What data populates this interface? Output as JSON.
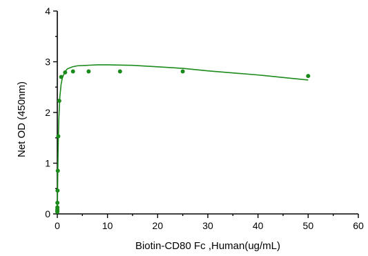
{
  "chart_data": {
    "type": "scatter",
    "title": "",
    "xlabel": "Biotin-CD80 Fc ,Human(ug/mL)",
    "ylabel": "Net OD (450nm)",
    "xlim": [
      0,
      60
    ],
    "ylim": [
      0,
      4
    ],
    "xticks": [
      0,
      10,
      20,
      30,
      40,
      50,
      60
    ],
    "yticks": [
      0,
      1,
      2,
      3,
      4
    ],
    "grid": false,
    "legend": "none",
    "colors": {
      "series": "#1a8a1a",
      "axis": "#000000"
    },
    "series": [
      {
        "x": [
          0.0,
          0.0031,
          0.0061,
          0.012,
          0.024,
          0.049,
          0.098,
          0.195,
          0.39,
          0.78,
          1.56,
          3.125,
          6.25,
          12.5,
          25,
          50
        ],
        "y": [
          0.04,
          0.06,
          0.09,
          0.13,
          0.22,
          0.46,
          0.85,
          1.53,
          2.23,
          2.7,
          2.79,
          2.81,
          2.81,
          2.81,
          2.81,
          2.72
        ]
      }
    ],
    "fit_curve": {
      "x": [
        0,
        0.05,
        0.1,
        0.2,
        0.3,
        0.5,
        0.75,
        1,
        1.5,
        2,
        3,
        4,
        6,
        8,
        10,
        12.5,
        15,
        20,
        25,
        30,
        35,
        40,
        45,
        50
      ],
      "y": [
        0.0,
        0.4,
        0.85,
        1.45,
        1.85,
        2.3,
        2.55,
        2.68,
        2.8,
        2.86,
        2.9,
        2.92,
        2.93,
        2.94,
        2.94,
        2.935,
        2.93,
        2.9,
        2.87,
        2.82,
        2.78,
        2.74,
        2.69,
        2.64
      ]
    }
  }
}
